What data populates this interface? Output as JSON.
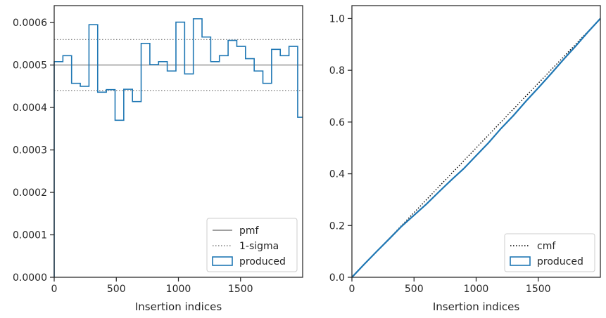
{
  "chart_data": [
    {
      "type": "step",
      "xlabel": "Insertion indices",
      "ylabel": "",
      "xlim": [
        0,
        2000
      ],
      "ylim": [
        0,
        0.00064
      ],
      "xticks": [
        0,
        500,
        1000,
        1500
      ],
      "xtick_labels": [
        "0",
        "500",
        "1000",
        "1500"
      ],
      "yticks": [
        0,
        0.0001,
        0.0002,
        0.0003,
        0.0004,
        0.0005,
        0.0006
      ],
      "ytick_labels": [
        "0.0000",
        "0.0001",
        "0.0002",
        "0.0003",
        "0.0004",
        "0.0005",
        "0.0006"
      ],
      "legend_position": "lower-right",
      "lines": [
        {
          "name": "pmf",
          "y": 0.0005,
          "color": "#808080",
          "style": "solid"
        },
        {
          "name": "1-sigma",
          "y": [
            0.00044,
            0.00056
          ],
          "color": "#808080",
          "style": "dotted"
        }
      ],
      "series": [
        {
          "name": "produced",
          "color": "#1f77b4",
          "bin_edges": [
            0,
            70,
            140,
            210,
            280,
            350,
            420,
            490,
            560,
            630,
            700,
            770,
            840,
            910,
            980,
            1050,
            1120,
            1190,
            1260,
            1330,
            1400,
            1470,
            1540,
            1610,
            1680,
            1750,
            1820,
            1890,
            1960,
            2000
          ],
          "values": [
            0.000508,
            0.000522,
            0.000457,
            0.00045,
            0.000595,
            0.000436,
            0.000442,
            0.00037,
            0.000443,
            0.000414,
            0.000551,
            0.000501,
            0.000508,
            0.000486,
            0.000601,
            0.000479,
            0.000609,
            0.000566,
            0.000508,
            0.000522,
            0.000558,
            0.000544,
            0.000515,
            0.000486,
            0.000457,
            0.000537,
            0.000522,
            0.000544,
            0.000377
          ]
        }
      ]
    },
    {
      "type": "line",
      "xlabel": "Insertion indices",
      "ylabel": "",
      "xlim": [
        0,
        2000
      ],
      "ylim": [
        0,
        1.05
      ],
      "xticks": [
        0,
        500,
        1000,
        1500
      ],
      "xtick_labels": [
        "0",
        "500",
        "1000",
        "1500"
      ],
      "yticks": [
        0,
        0.2,
        0.4,
        0.6,
        0.8,
        1.0
      ],
      "ytick_labels": [
        "0.0",
        "0.2",
        "0.4",
        "0.6",
        "0.8",
        "1.0"
      ],
      "legend_position": "lower-right",
      "series": [
        {
          "name": "cmf",
          "color": "#000000",
          "style": "dotted",
          "x": [
            0,
            2000
          ],
          "y": [
            0,
            1.0
          ]
        },
        {
          "name": "produced",
          "color": "#1f77b4",
          "style": "solid",
          "x": [
            0,
            100,
            200,
            300,
            400,
            500,
            600,
            700,
            800,
            900,
            1000,
            1100,
            1200,
            1300,
            1400,
            1500,
            1600,
            1700,
            1800,
            1900,
            2000
          ],
          "y": [
            0,
            0.051,
            0.1,
            0.148,
            0.197,
            0.24,
            0.283,
            0.33,
            0.376,
            0.42,
            0.47,
            0.52,
            0.575,
            0.625,
            0.68,
            0.732,
            0.785,
            0.84,
            0.893,
            0.948,
            1.0
          ]
        }
      ]
    }
  ]
}
